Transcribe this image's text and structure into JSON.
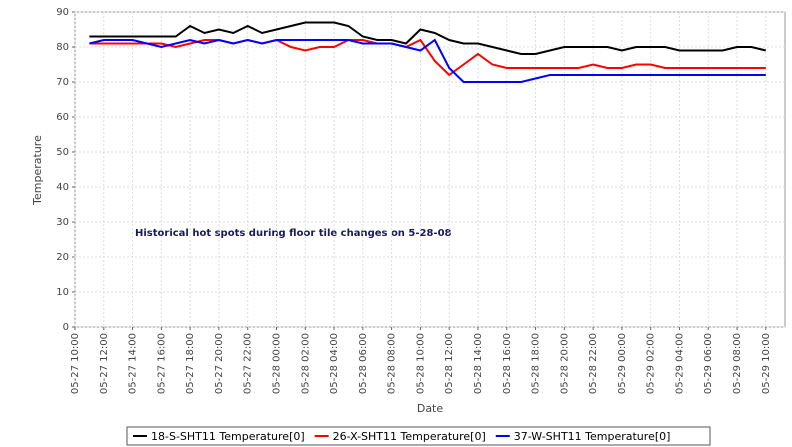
{
  "chart_data": {
    "type": "line",
    "title_annotation": "Historical hot spots during floor tile changes on 5-28-08",
    "xlabel": "Date",
    "ylabel": "Temperature",
    "x": [
      "05-27 11:00",
      "05-27 12:00",
      "05-27 13:00",
      "05-27 14:00",
      "05-27 15:00",
      "05-27 16:00",
      "05-27 17:00",
      "05-27 18:00",
      "05-27 19:00",
      "05-27 20:00",
      "05-27 21:00",
      "05-27 22:00",
      "05-27 23:00",
      "05-28 00:00",
      "05-28 01:00",
      "05-28 02:00",
      "05-28 03:00",
      "05-28 04:00",
      "05-28 05:00",
      "05-28 06:00",
      "05-28 07:00",
      "05-28 08:00",
      "05-28 09:00",
      "05-28 10:00",
      "05-28 11:00",
      "05-28 12:00",
      "05-28 13:00",
      "05-28 14:00",
      "05-28 15:00",
      "05-28 16:00",
      "05-28 17:00",
      "05-28 18:00",
      "05-28 19:00",
      "05-28 20:00",
      "05-28 21:00",
      "05-28 22:00",
      "05-28 23:00",
      "05-29 00:00",
      "05-29 01:00",
      "05-29 02:00",
      "05-29 03:00",
      "05-29 04:00",
      "05-29 05:00",
      "05-29 06:00",
      "05-29 07:00",
      "05-29 08:00",
      "05-29 09:00",
      "05-29 10:00"
    ],
    "series": [
      {
        "name": "18-S-SHT11 Temperature[0]",
        "color": "#000000",
        "values": [
          83,
          83,
          83,
          83,
          83,
          83,
          83,
          86,
          84,
          85,
          84,
          86,
          84,
          85,
          86,
          87,
          87,
          87,
          86,
          83,
          82,
          82,
          81,
          85,
          84,
          82,
          81,
          81,
          80,
          79,
          78,
          78,
          79,
          80,
          80,
          80,
          80,
          79,
          80,
          80,
          80,
          79,
          79,
          79,
          79,
          80,
          80,
          79
        ]
      },
      {
        "name": "26-X-SHT11 Temperature[0]",
        "color": "#ff0000",
        "values": [
          81,
          81,
          81,
          81,
          81,
          81,
          80,
          81,
          82,
          82,
          81,
          82,
          81,
          82,
          80,
          79,
          80,
          80,
          82,
          82,
          81,
          81,
          80,
          82,
          76,
          72,
          75,
          78,
          75,
          74,
          74,
          74,
          74,
          74,
          74,
          75,
          74,
          74,
          75,
          75,
          74,
          74,
          74,
          74,
          74,
          74,
          74,
          74
        ]
      },
      {
        "name": "37-W-SHT11 Temperature[0]",
        "color": "#0000ff",
        "values": [
          81,
          82,
          82,
          82,
          81,
          80,
          81,
          82,
          81,
          82,
          81,
          82,
          81,
          82,
          82,
          82,
          82,
          82,
          82,
          81,
          81,
          81,
          80,
          79,
          82,
          74,
          70,
          70,
          70,
          70,
          70,
          71,
          72,
          72,
          72,
          72,
          72,
          72,
          72,
          72,
          72,
          72,
          72,
          72,
          72,
          72,
          72,
          72
        ]
      }
    ],
    "xlim": [
      "05-27 10:00",
      "05-29 11:20"
    ],
    "xticks": [
      "05-27 10:00",
      "05-27 12:00",
      "05-27 14:00",
      "05-27 16:00",
      "05-27 18:00",
      "05-27 20:00",
      "05-27 22:00",
      "05-28 00:00",
      "05-28 02:00",
      "05-28 04:00",
      "05-28 06:00",
      "05-28 08:00",
      "05-28 10:00",
      "05-28 12:00",
      "05-28 14:00",
      "05-28 16:00",
      "05-28 18:00",
      "05-28 20:00",
      "05-28 22:00",
      "05-29 00:00",
      "05-29 02:00",
      "05-29 04:00",
      "05-29 06:00",
      "05-29 08:00",
      "05-29 10:00"
    ],
    "ylim": [
      0,
      90
    ],
    "yticks": [
      0,
      10,
      20,
      30,
      40,
      50,
      60,
      70,
      80,
      90
    ],
    "grid": true,
    "legend": "bottom"
  }
}
